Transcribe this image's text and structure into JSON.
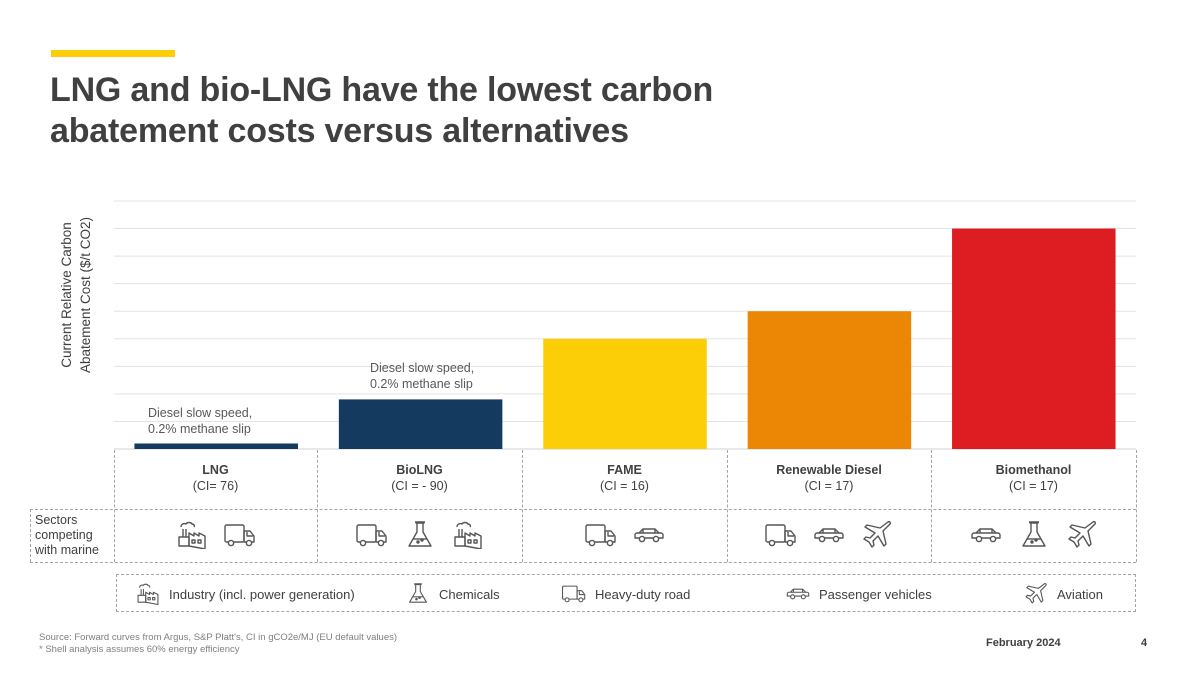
{
  "slide": {
    "title_line1": "LNG and bio-LNG have the lowest carbon",
    "title_line2": "abatement costs versus alternatives",
    "accent_color": "#fbce07",
    "date": "February 2024",
    "page_number": "4",
    "source_line1": "Source: Forward curves from Argus, S&P Platt's, CI in gCO2e/MJ (EU default values)",
    "source_line2": "* Shell analysis assumes 60% energy efficiency"
  },
  "chart_data": {
    "type": "bar",
    "title": "LNG and bio-LNG have the lowest carbon abatement costs versus alternatives",
    "xlabel": "",
    "ylabel_line1": "Current Relative Carbon",
    "ylabel_line2": "Abatement Cost ($/t CO2)",
    "ylabel": "Current Relative Carbon Abatement Cost ($/t CO2)",
    "ylim": [
      0,
      9
    ],
    "y_units_note": "relative scale; no tick labels shown, values in gridline units",
    "grid": true,
    "gridlines": 9,
    "categories": [
      "LNG",
      "BioLNG",
      "FAME",
      "Renewable Diesel",
      "Biomethanol"
    ],
    "ci_labels": [
      "(CI= 76)",
      "(CI = - 90)",
      "(CI = 16)",
      "(CI = 17)",
      "(CI = 17)"
    ],
    "values": [
      0.2,
      1.8,
      4,
      5,
      8
    ],
    "colors": [
      "#143a60",
      "#143a60",
      "#fbce07",
      "#eb8705",
      "#dd1d21"
    ],
    "annotations": [
      {
        "category": "LNG",
        "line1": "Diesel slow speed,",
        "line2": "0.2% methane slip"
      },
      {
        "category": "BioLNG",
        "line1": "Diesel slow speed,",
        "line2": "0.2% methane slip"
      }
    ]
  },
  "table": {
    "row_label_line1": "Sectors",
    "row_label_line2": "competing",
    "row_label_line3": "with marine",
    "sectors": [
      [
        "industry",
        "truck"
      ],
      [
        "truck",
        "chemicals",
        "industry"
      ],
      [
        "truck",
        "car"
      ],
      [
        "truck",
        "car",
        "plane"
      ],
      [
        "car",
        "chemicals",
        "plane"
      ]
    ]
  },
  "legend": [
    {
      "icon": "industry-icon",
      "label": "Industry (incl. power generation)"
    },
    {
      "icon": "chemicals-icon",
      "label": "Chemicals"
    },
    {
      "icon": "truck-icon",
      "label": "Heavy-duty road"
    },
    {
      "icon": "car-icon",
      "label": "Passenger vehicles"
    },
    {
      "icon": "plane-icon",
      "label": "Aviation"
    }
  ]
}
